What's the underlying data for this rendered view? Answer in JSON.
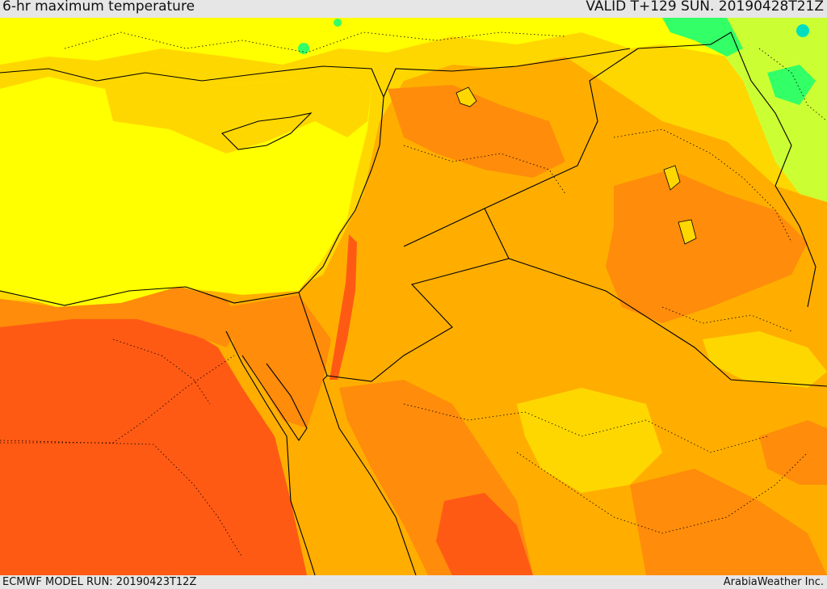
{
  "header": {
    "title": "6-hr maximum temperature",
    "valid_time": "VALID T+129 SUN. 20190428T21Z"
  },
  "footer": {
    "model_run": "ECMWF MODEL RUN: 20190423T12Z",
    "credit": "ArabiaWeather Inc."
  },
  "palette": {
    "very_hot": "#ff5a14",
    "hot": "#ff8c0a",
    "warm_orange": "#ffae00",
    "warm": "#ffd700",
    "mild": "#ffff00",
    "cool": "#ccff33",
    "cooler": "#33ff66",
    "coolest": "#00e0c0",
    "border_color": "#000000"
  }
}
